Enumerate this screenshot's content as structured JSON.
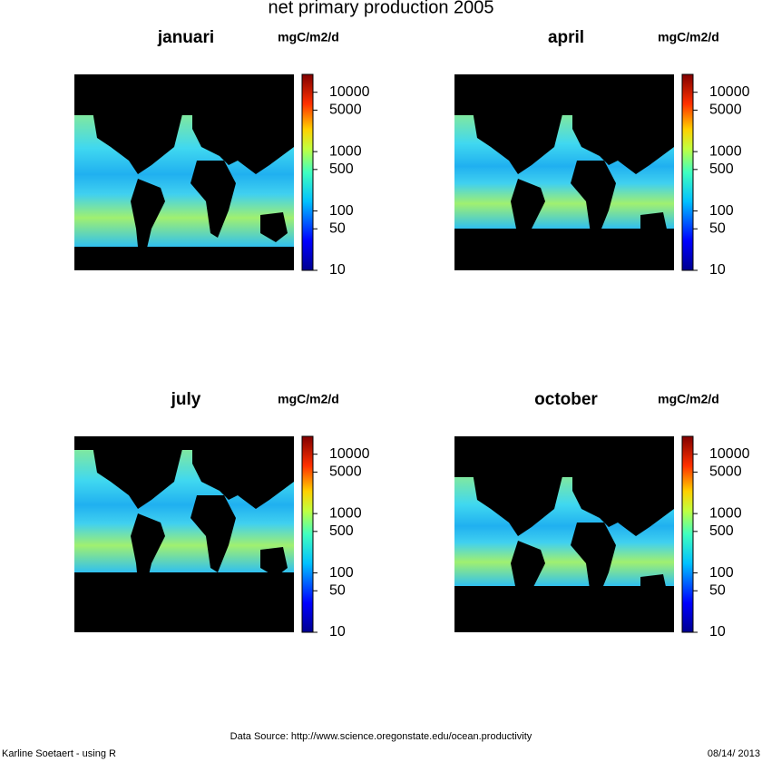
{
  "title": "net primary production 2005",
  "panels": [
    {
      "title": "januari",
      "unit": "mgC/m2/d"
    },
    {
      "title": "april",
      "unit": "mgC/m2/d"
    },
    {
      "title": "july",
      "unit": "mgC/m2/d"
    },
    {
      "title": "october",
      "unit": "mgC/m2/d"
    }
  ],
  "colorbar": {
    "log": true,
    "lim": [
      10,
      20000
    ],
    "ticks": [
      10,
      50,
      100,
      500,
      1000,
      5000,
      10000
    ]
  },
  "footer": {
    "source": "Data Source:  http://www.science.oregonstate.edu/ocean.productivity",
    "author": "Karline Soetaert - using R",
    "date": "08/14/ 2013"
  }
}
